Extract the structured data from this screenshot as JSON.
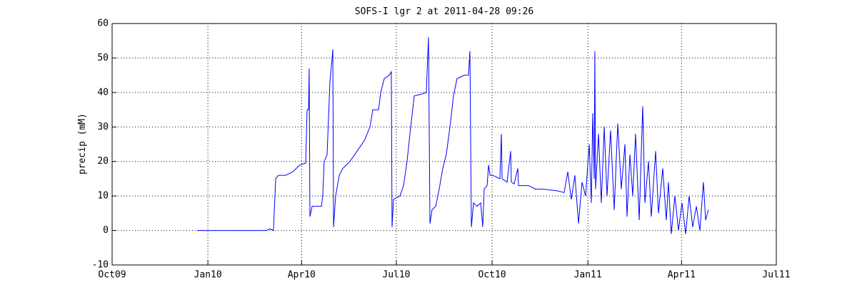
{
  "chart_data": {
    "type": "line",
    "title": "SOFS-I lgr 2 at 2011-04-28 09:26",
    "y_label": "precip (mM)",
    "xlim": [
      734047,
      734685
    ],
    "xticks": [
      {
        "value": 734047,
        "label": "Oct09"
      },
      {
        "value": 734139,
        "label": "Jan10"
      },
      {
        "value": 734229,
        "label": "Apr10"
      },
      {
        "value": 734320,
        "label": "Jul10"
      },
      {
        "value": 734412,
        "label": "Oct10"
      },
      {
        "value": 734504,
        "label": "Jan11"
      },
      {
        "value": 734594,
        "label": "Apr11"
      },
      {
        "value": 734685,
        "label": "Jul11"
      }
    ],
    "ylim": [
      -10,
      60
    ],
    "yticks": [
      -10,
      0,
      10,
      20,
      30,
      40,
      50,
      60
    ],
    "grid": true,
    "series": [
      {
        "color": "#0000ff",
        "x": [
          734128.6,
          734145.1,
          734195.2,
          734198.6,
          734202.0,
          734204.1,
          734206.8,
          734213.7,
          734220.6,
          734224.0,
          734227.4,
          734232.9,
          734234.3,
          734235.7,
          734236.3,
          734237.0,
          734239.1,
          734248.0,
          734249.3,
          734250.7,
          734253.5,
          734256.2,
          734258.3,
          734259.0,
          734259.7,
          734261.7,
          734265.2,
          734268.6,
          734275.4,
          734282.3,
          734289.2,
          734294.7,
          734297.4,
          734302.9,
          734305.0,
          734308.4,
          734313.2,
          734315.2,
          734315.9,
          734317.3,
          734323.5,
          734326.9,
          734330.3,
          734333.8,
          734337.2,
          734344.0,
          734348.8,
          734350.9,
          734352.3,
          734354.3,
          734357.8,
          734361.2,
          734364.6,
          734368.0,
          734371.5,
          734374.9,
          734378.3,
          734385.2,
          734389.3,
          734390.7,
          734392.1,
          734394.2,
          734397.6,
          734401.0,
          734403.0,
          734404.4,
          734407.2,
          734408.6,
          734410.0,
          734412.6,
          734419.5,
          734420.9,
          734421.6,
          734426.4,
          734429.8,
          734430.5,
          734433.2,
          734436.7,
          734437.4,
          734447.0,
          734453.8,
          734460.7,
          734474.4,
          734481.2,
          734484.7,
          734488.1,
          734491.5,
          734495.0,
          734498.4,
          734501.8,
          734505.3,
          734507.3,
          734508.7,
          734510.1,
          734510.7,
          734511.4,
          734514.2,
          734516.9,
          734519.7,
          734522.4,
          734525.8,
          734529.3,
          734532.7,
          734536.1,
          734539.6,
          734541.6,
          734544.4,
          734547.1,
          734549.8,
          734553.3,
          734556.7,
          734558.8,
          734562.2,
          734564.9,
          734569.1,
          734571.8,
          734575.9,
          734579.3,
          734581.4,
          734584.1,
          734587.6,
          734591.0,
          734594.4,
          734597.9,
          734601.3,
          734604.7,
          734608.2,
          734611.6,
          734615.0,
          734617.1,
          734619.8
        ],
        "values": [
          0,
          0,
          0,
          0.5,
          0,
          15,
          16,
          16,
          17,
          18,
          19,
          19.5,
          35,
          35,
          47,
          4,
          7,
          7,
          10,
          20,
          22,
          43,
          50,
          52.5,
          1,
          10,
          16,
          18,
          20,
          23,
          26,
          30,
          35,
          35,
          40,
          44,
          45,
          46,
          1,
          9,
          10,
          13,
          20,
          30,
          39,
          39.5,
          40,
          56,
          2,
          6,
          7,
          12,
          18,
          22,
          30,
          39,
          44,
          45,
          45,
          52,
          1,
          8,
          7,
          8,
          1,
          12,
          13,
          19,
          16,
          16,
          15,
          28,
          15,
          14,
          23,
          14,
          13.5,
          18,
          13,
          13,
          12,
          12,
          11.5,
          11,
          17,
          9,
          16,
          2,
          14,
          10,
          25,
          8,
          34,
          15,
          52,
          12,
          28,
          8,
          30,
          10,
          29,
          6,
          31,
          12,
          25,
          4,
          22,
          10,
          28,
          3,
          36,
          8,
          20,
          4,
          23,
          5,
          18,
          3,
          14,
          -1,
          10,
          0,
          8,
          -1,
          10,
          1,
          7,
          0,
          14,
          3,
          6
        ]
      }
    ]
  }
}
